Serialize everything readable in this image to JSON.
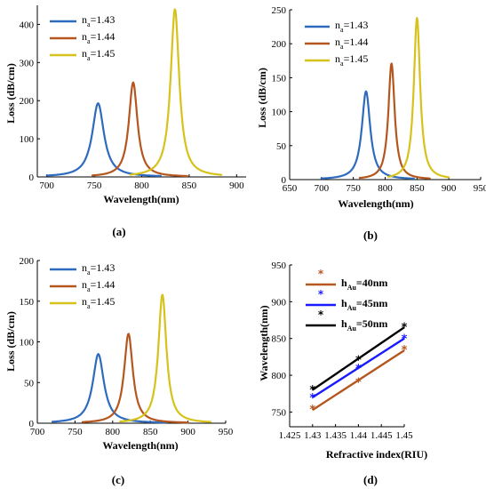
{
  "chart_data": [
    {
      "panel": "(a)",
      "type": "line",
      "xlabel": "Wavelength(nm)",
      "ylabel": "Loss (dB/cm)",
      "xlim": [
        690,
        910
      ],
      "ylim": [
        0,
        450
      ],
      "xticks": [
        700,
        750,
        800,
        850,
        900
      ],
      "yticks": [
        0,
        100,
        200,
        300,
        400
      ],
      "legend_prefix": "n",
      "legend_sub": "a",
      "series": [
        {
          "name": "=1.43",
          "color": "#2e6bbf",
          "peak_x": 754,
          "peak_y": 193,
          "gamma": 7.5,
          "x_range": [
            700,
            820
          ]
        },
        {
          "name": "=1.44",
          "color": "#b5561f",
          "peak_x": 791,
          "peak_y": 248,
          "gamma": 5.5,
          "x_range": [
            748,
            848
          ]
        },
        {
          "name": "=1.45",
          "color": "#d6c21a",
          "peak_x": 835,
          "peak_y": 440,
          "gamma": 5.5,
          "x_range": [
            788,
            884
          ]
        }
      ]
    },
    {
      "panel": "(b)",
      "type": "line",
      "xlabel": "Wavelength(nm)",
      "ylabel": "Loss (dB/cm)",
      "xlim": [
        650,
        950
      ],
      "ylim": [
        0,
        250
      ],
      "xticks": [
        650,
        700,
        750,
        800,
        850,
        900,
        950
      ],
      "yticks": [
        0,
        50,
        100,
        150,
        200,
        250
      ],
      "legend_prefix": "n",
      "legend_sub": "a",
      "series": [
        {
          "name": "=1.43",
          "color": "#2e6bbf",
          "peak_x": 770,
          "peak_y": 130,
          "gamma": 8,
          "x_range": [
            700,
            845
          ]
        },
        {
          "name": "=1.44",
          "color": "#b5561f",
          "peak_x": 810,
          "peak_y": 171,
          "gamma": 6,
          "x_range": [
            760,
            870
          ]
        },
        {
          "name": "=1.45",
          "color": "#d6c21a",
          "peak_x": 850,
          "peak_y": 238,
          "gamma": 6,
          "x_range": [
            805,
            900
          ]
        }
      ]
    },
    {
      "panel": "(c)",
      "type": "line",
      "xlabel": "Wavelength(nm)",
      "ylabel": "Loss (dB/cm)",
      "xlim": [
        700,
        950
      ],
      "ylim": [
        0,
        200
      ],
      "xticks": [
        700,
        750,
        800,
        850,
        900,
        950
      ],
      "yticks": [
        0,
        50,
        100,
        150,
        200
      ],
      "legend_prefix": "n",
      "legend_sub": "a",
      "series": [
        {
          "name": "=1.43",
          "color": "#2e6bbf",
          "peak_x": 781,
          "peak_y": 85,
          "gamma": 9,
          "x_range": [
            720,
            870
          ]
        },
        {
          "name": "=1.44",
          "color": "#b5561f",
          "peak_x": 821,
          "peak_y": 110,
          "gamma": 7,
          "x_range": [
            760,
            900
          ]
        },
        {
          "name": "=1.45",
          "color": "#d6c21a",
          "peak_x": 866,
          "peak_y": 158,
          "gamma": 6.5,
          "x_range": [
            810,
            930
          ]
        }
      ]
    },
    {
      "panel": "(d)",
      "type": "scatter",
      "xlabel": "Refractive index(RIU)",
      "ylabel": "Wavelength(nm)",
      "xlim": [
        1.425,
        1.45
      ],
      "ylim": [
        730,
        950
      ],
      "xticks": [
        "1.425",
        "1.43",
        "1.435",
        "1.44",
        "1.445",
        "1.45"
      ],
      "yticks": [
        750,
        800,
        850,
        900,
        950
      ],
      "legend_prefix": "h",
      "legend_sub": "Au",
      "series": [
        {
          "name": "=40nm",
          "color": "#b5561f",
          "x": [
            1.43,
            1.44,
            1.45
          ],
          "y": [
            754,
            791,
            835
          ]
        },
        {
          "name": "=45nm",
          "color": "#1a1aff",
          "x": [
            1.43,
            1.44,
            1.45
          ],
          "y": [
            770,
            810,
            850
          ]
        },
        {
          "name": "=50nm",
          "color": "#000000",
          "x": [
            1.43,
            1.44,
            1.45
          ],
          "y": [
            781,
            821,
            866
          ]
        }
      ]
    }
  ]
}
